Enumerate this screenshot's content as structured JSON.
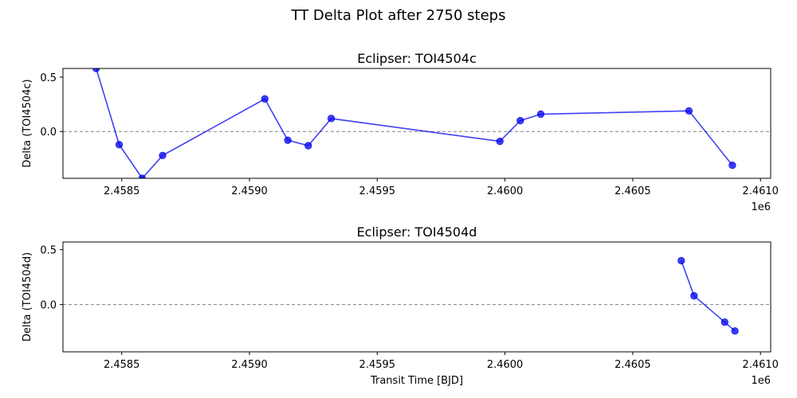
{
  "figure_title": "TT Delta Plot after 2750 steps",
  "colors": {
    "series": "#0000ee",
    "zero_line": "#808080",
    "axes": "#000000"
  },
  "chart_data": [
    {
      "type": "line",
      "title": "Eclipser: TOI4504c",
      "xlabel": "",
      "ylabel": "Delta (TOI4504c)",
      "x_offset_label": "1e6",
      "xlim": [
        2.45827,
        2.46104
      ],
      "ylim": [
        -0.43,
        0.58
      ],
      "x_ticks": [
        2.4585,
        2.459,
        2.4595,
        2.46,
        2.4605,
        2.461
      ],
      "x_tick_labels": [
        "2.4585",
        "2.4590",
        "2.4595",
        "2.4600",
        "2.4605",
        "2.4610"
      ],
      "y_ticks": [
        0.5,
        0.0
      ],
      "y_tick_labels": [
        "0.5",
        "0.0"
      ],
      "reference_line": 0,
      "series": [
        {
          "x": [
            2.4584,
            2.45849,
            2.45858,
            2.45866,
            2.45906,
            2.45915,
            2.45923,
            2.45932,
            2.45998,
            2.46006,
            2.46014,
            2.46072,
            2.46089
          ],
          "y": [
            0.58,
            -0.12,
            -0.43,
            -0.22,
            0.3,
            -0.08,
            -0.13,
            0.12,
            -0.09,
            0.1,
            0.16,
            0.19,
            -0.31
          ]
        }
      ]
    },
    {
      "type": "line",
      "title": "Eclipser: TOI4504d",
      "xlabel": "Transit Time [BJD]",
      "ylabel": "Delta (TOI4504d)",
      "x_offset_label": "1e6",
      "xlim": [
        2.45827,
        2.46104
      ],
      "ylim": [
        -0.43,
        0.57
      ],
      "x_ticks": [
        2.4585,
        2.459,
        2.4595,
        2.46,
        2.4605,
        2.461
      ],
      "x_tick_labels": [
        "2.4585",
        "2.4590",
        "2.4595",
        "2.4600",
        "2.4605",
        "2.4610"
      ],
      "y_ticks": [
        0.5,
        0.0
      ],
      "y_tick_labels": [
        "0.5",
        "0.0"
      ],
      "reference_line": 0,
      "series": [
        {
          "x": [
            2.46069,
            2.46074,
            2.46086,
            2.4609
          ],
          "y": [
            0.4,
            0.08,
            -0.16,
            -0.24
          ]
        }
      ]
    }
  ]
}
